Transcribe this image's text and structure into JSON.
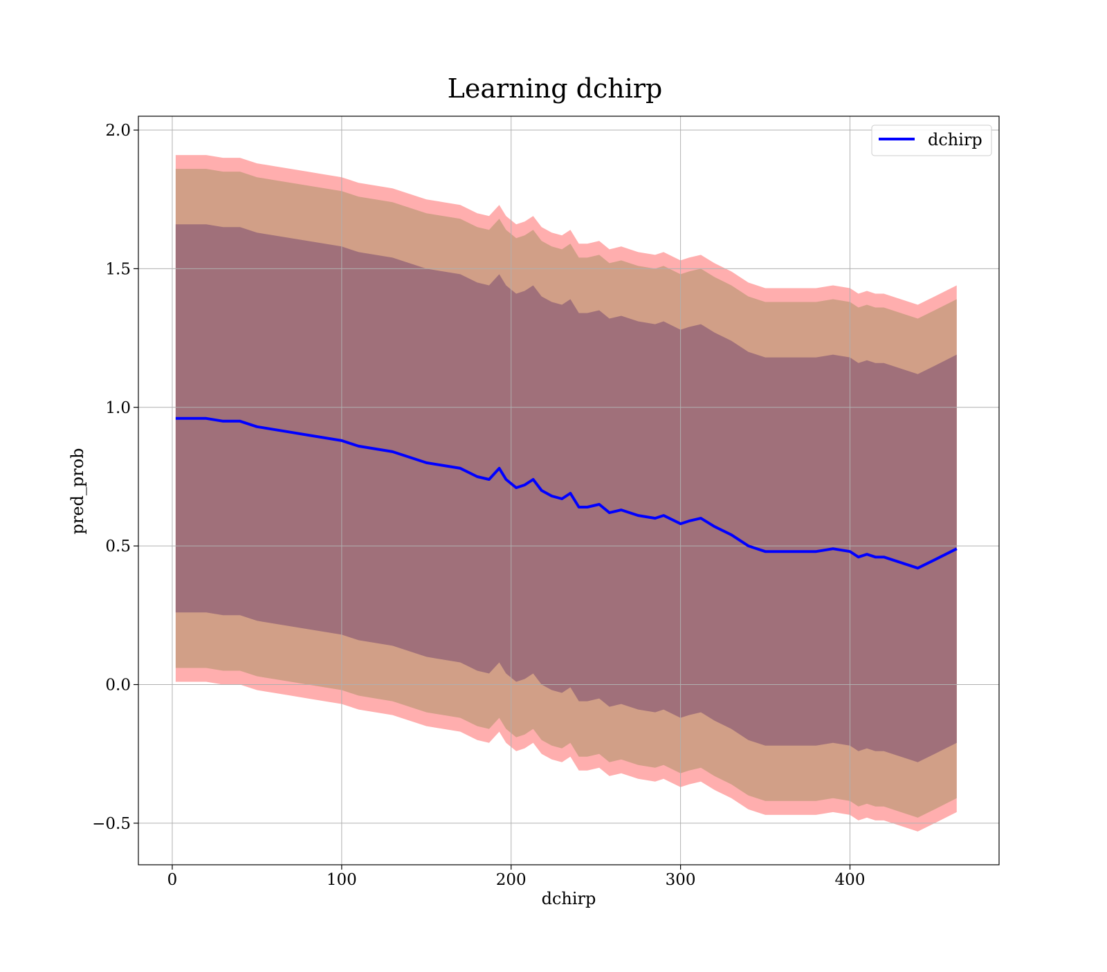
{
  "chart_data": {
    "type": "line",
    "title": "Learning dchirp",
    "xlabel": "dchirp",
    "ylabel": "pred_prob",
    "xlim": [
      -20,
      488
    ],
    "ylim": [
      -0.65,
      2.05
    ],
    "grid": true,
    "legend_position": "top-right",
    "x_ticks": [
      0,
      100,
      200,
      300,
      400
    ],
    "x_tick_labels": [
      "0",
      "100",
      "200",
      "300",
      "400"
    ],
    "y_ticks": [
      -0.5,
      0.0,
      0.5,
      1.0,
      1.5,
      2.0
    ],
    "y_tick_labels": [
      "−0.5",
      "0.0",
      "0.5",
      "1.0",
      "1.5",
      "2.0"
    ],
    "series": [
      {
        "name": "dchirp",
        "color": "#0000ff",
        "x": [
          2,
          10,
          20,
          30,
          40,
          50,
          60,
          70,
          80,
          90,
          100,
          110,
          120,
          130,
          140,
          150,
          160,
          170,
          180,
          187,
          193,
          197,
          203,
          208,
          213,
          218,
          224,
          230,
          235,
          240,
          245,
          252,
          258,
          265,
          275,
          285,
          290,
          300,
          305,
          312,
          320,
          330,
          340,
          350,
          360,
          370,
          380,
          390,
          400,
          405,
          410,
          415,
          420,
          430,
          440,
          450,
          463
        ],
        "values": [
          0.96,
          0.96,
          0.96,
          0.95,
          0.95,
          0.93,
          0.92,
          0.91,
          0.9,
          0.89,
          0.88,
          0.86,
          0.85,
          0.84,
          0.82,
          0.8,
          0.79,
          0.78,
          0.75,
          0.74,
          0.78,
          0.74,
          0.71,
          0.72,
          0.74,
          0.7,
          0.68,
          0.67,
          0.69,
          0.64,
          0.64,
          0.65,
          0.62,
          0.63,
          0.61,
          0.6,
          0.61,
          0.58,
          0.59,
          0.6,
          0.57,
          0.54,
          0.5,
          0.48,
          0.48,
          0.48,
          0.48,
          0.49,
          0.48,
          0.46,
          0.47,
          0.46,
          0.46,
          0.44,
          0.42,
          0.45,
          0.49
        ]
      }
    ],
    "bands": [
      {
        "halfwidth": 0.95,
        "color": "#ff6b6b",
        "opacity": 0.55
      },
      {
        "halfwidth": 0.9,
        "color": "#c29a7a",
        "opacity": 0.75
      },
      {
        "halfwidth": 0.7,
        "color": "#a0707a",
        "opacity": 1.0
      }
    ]
  }
}
